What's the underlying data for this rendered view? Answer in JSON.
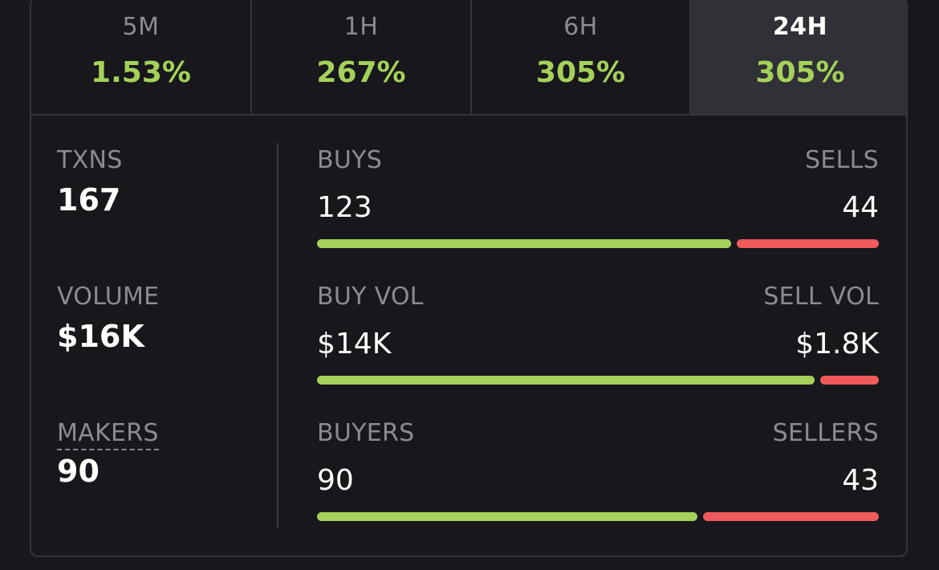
{
  "tabs": [
    {
      "label": "5M",
      "pct": "1.53%",
      "active": false
    },
    {
      "label": "1H",
      "pct": "267%",
      "active": false
    },
    {
      "label": "6H",
      "pct": "305%",
      "active": false
    },
    {
      "label": "24H",
      "pct": "305%",
      "active": true
    }
  ],
  "stats": {
    "txns": {
      "label": "TXNS",
      "value": "167"
    },
    "volume": {
      "label": "VOLUME",
      "value": "$16K"
    },
    "makers": {
      "label": "MAKERS",
      "value": "90"
    }
  },
  "rows": [
    {
      "left_label": "BUYS",
      "right_label": "SELLS",
      "left_value": "123",
      "right_value": "44",
      "buy_fraction": 0.7365
    },
    {
      "left_label": "BUY VOL",
      "right_label": "SELL VOL",
      "left_value": "$14K",
      "right_value": "$1.8K",
      "buy_fraction": 0.886
    },
    {
      "left_label": "BUYERS",
      "right_label": "SELLERS",
      "left_value": "90",
      "right_value": "43",
      "buy_fraction": 0.6767
    }
  ],
  "colors": {
    "positive": "#a5d15a",
    "negative": "#f05a5a",
    "muted": "#8b8b93"
  }
}
